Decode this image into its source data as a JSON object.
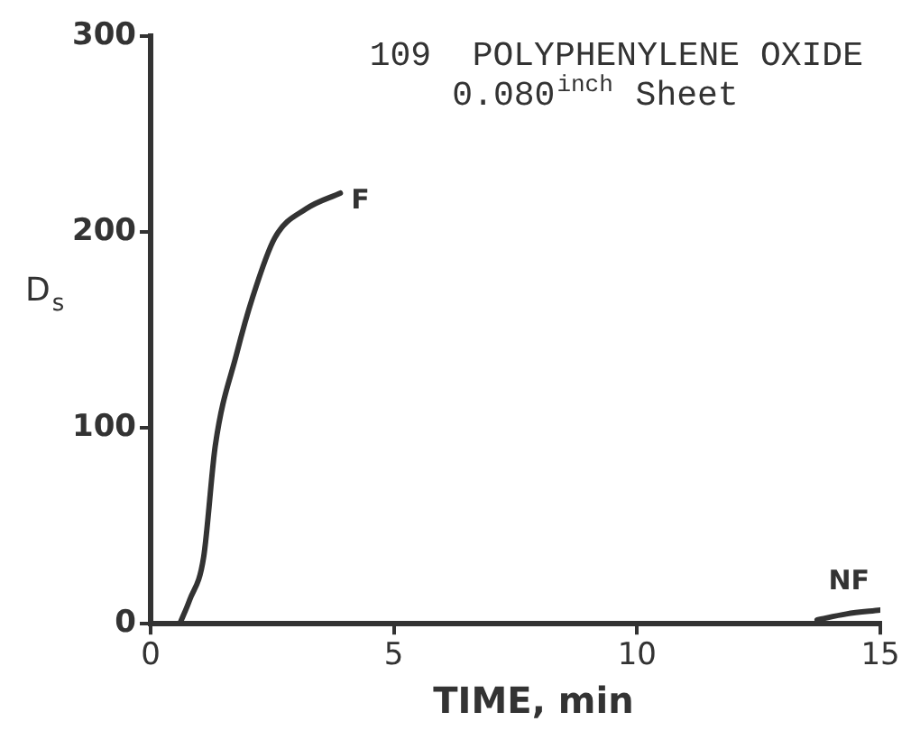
{
  "chart_data": {
    "type": "line",
    "title": "109  POLYPHENYLENE OXIDE",
    "subtitle": "0.080$^{inch}$ Sheet",
    "xlabel": "TIME, min",
    "ylabel": "D$_{s}$",
    "xlim": [
      0,
      15
    ],
    "xticks": [
      0,
      5,
      10,
      15
    ],
    "ylim": [
      0,
      300
    ],
    "yticks": [
      0,
      100,
      200,
      300
    ],
    "grid": false,
    "legend": false,
    "marker": "none",
    "line_style": "solid",
    "series": [
      {
        "name": "F",
        "color": "#333333",
        "x": [
          0.6,
          0.8,
          1.09,
          1.33,
          1.77,
          2.1,
          2.55,
          3.2,
          3.9
        ],
        "values": [
          0,
          12,
          34,
          91,
          138,
          167,
          197,
          212,
          220
        ]
      },
      {
        "name": "NF",
        "color": "#333333",
        "x": [
          13.7,
          14.3,
          15
        ],
        "values": [
          2,
          5,
          7
        ]
      }
    ]
  }
}
